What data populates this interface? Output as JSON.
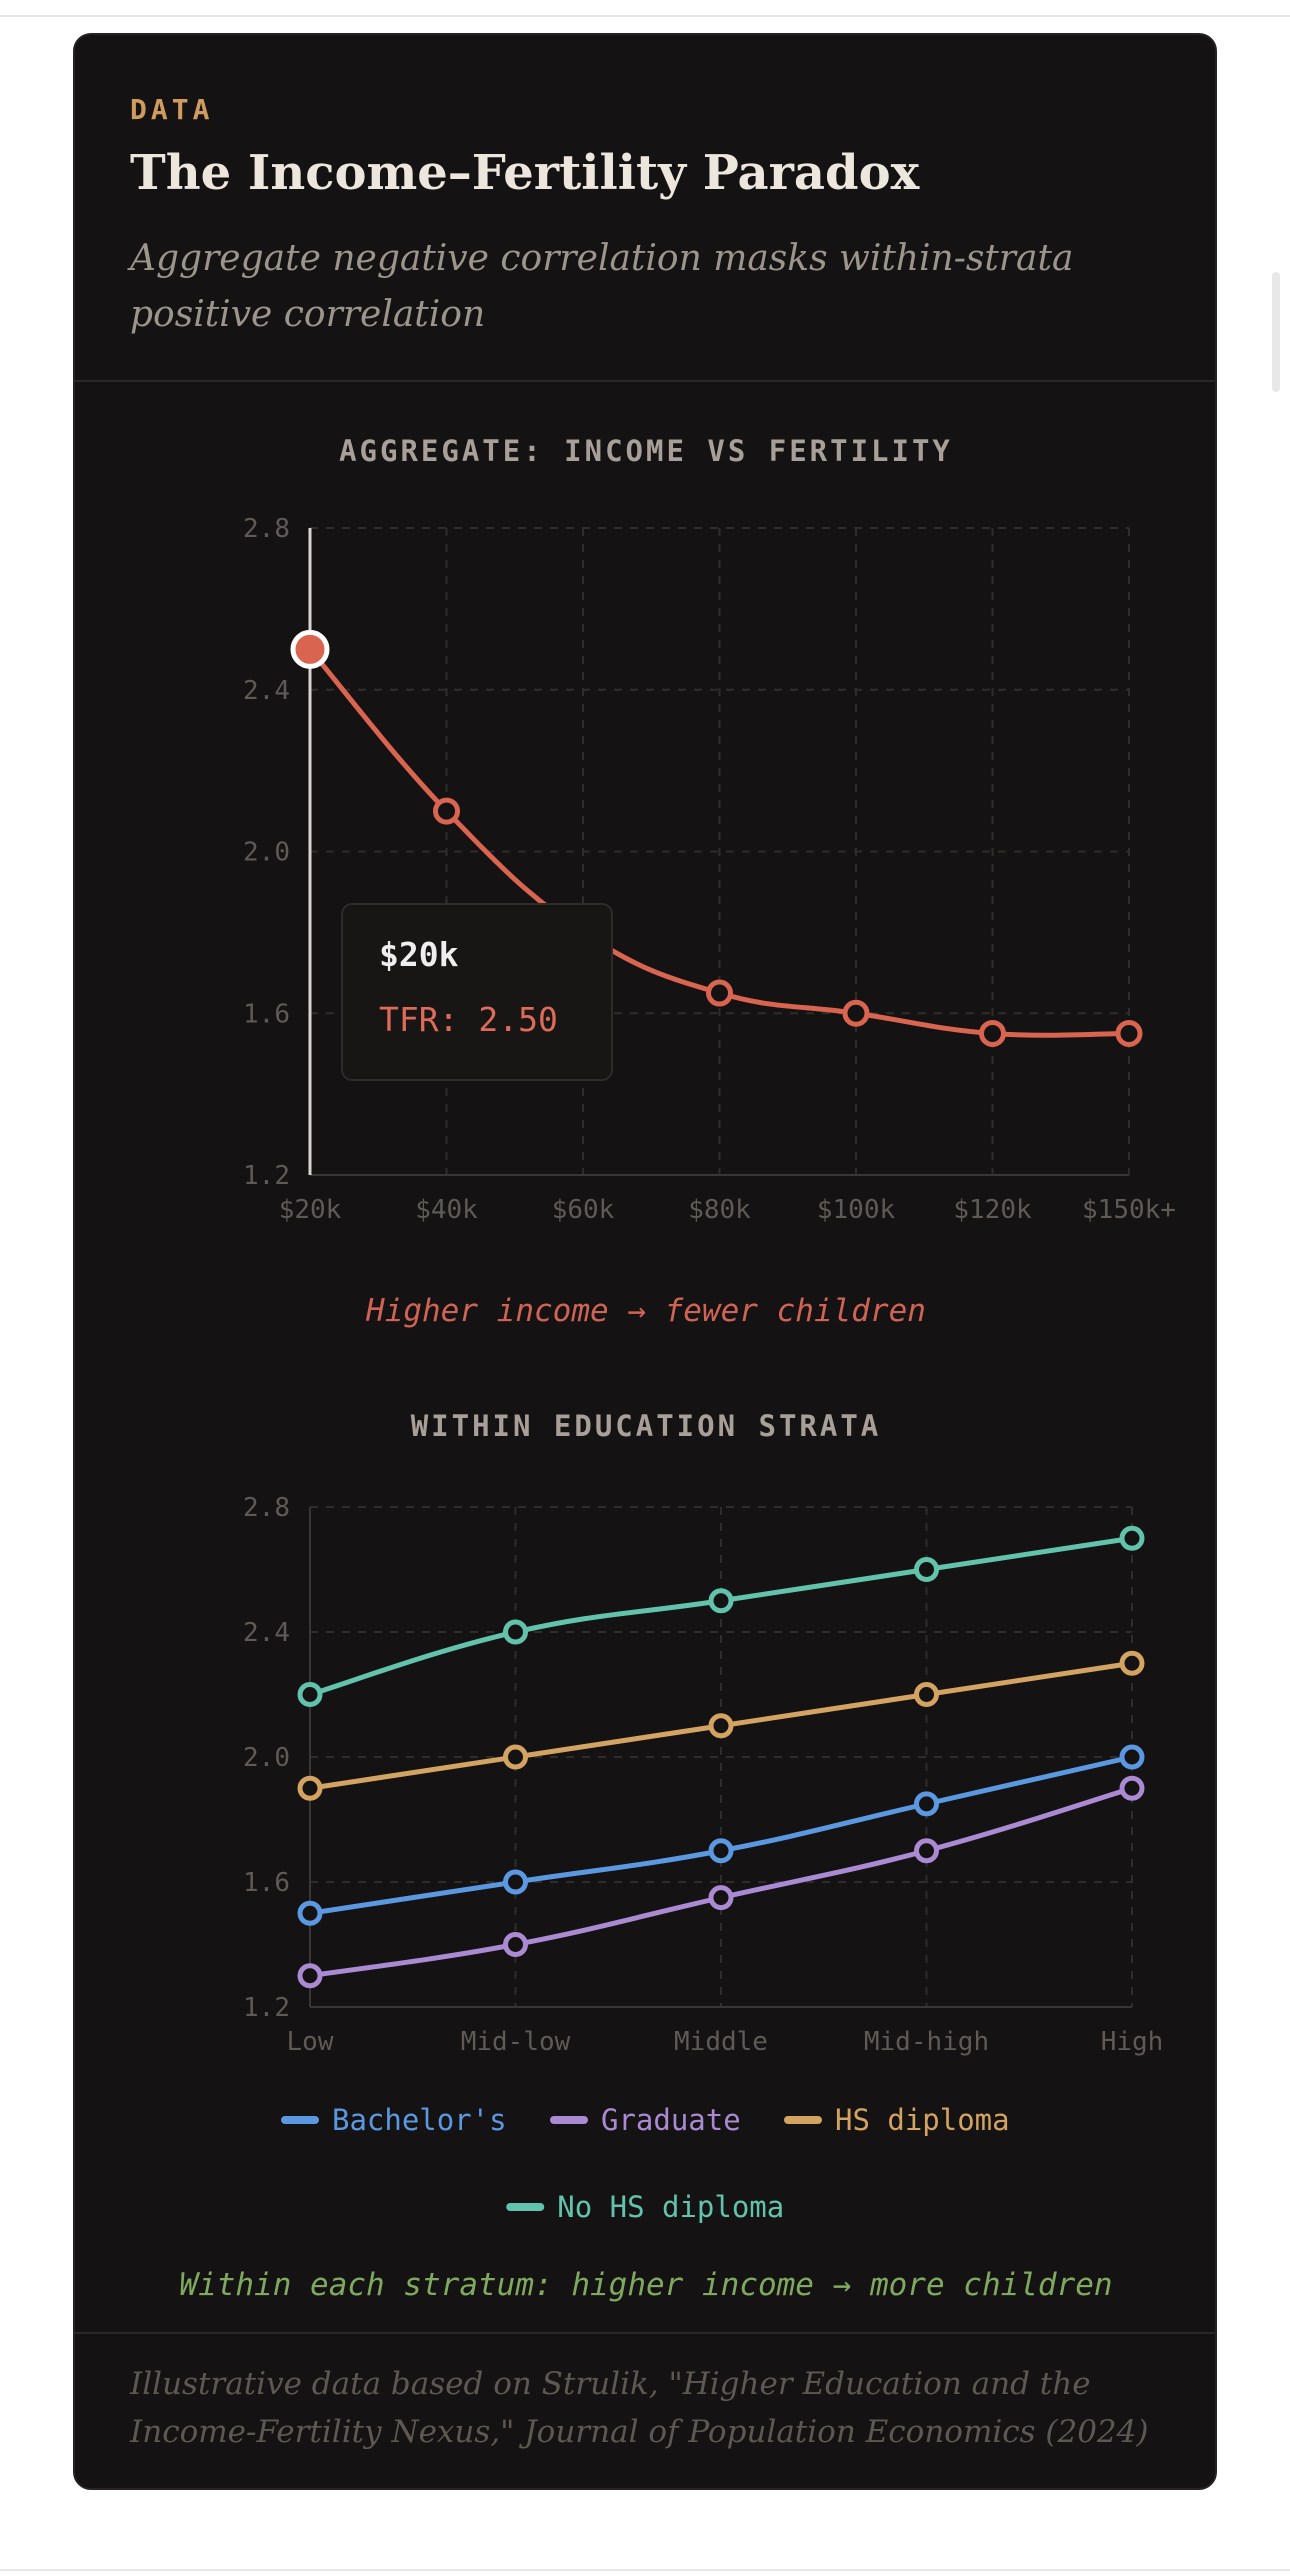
{
  "header": {
    "kicker": "DATA",
    "title": "The Income–Fertility Paradox",
    "subtitle": "Aggregate negative correlation masks within-strata positive correlation"
  },
  "chart_data": [
    {
      "type": "line",
      "title": "AGGREGATE: INCOME VS FERTILITY",
      "categories": [
        "$20k",
        "$40k",
        "$60k",
        "$80k",
        "$100k",
        "$120k",
        "$150k+"
      ],
      "series": [
        {
          "values": [
            2.5,
            2.1,
            1.8,
            1.65,
            1.6,
            1.55,
            1.55
          ],
          "color": "#d9644f",
          "markers": [
            0,
            1,
            3,
            4,
            5,
            6
          ]
        }
      ],
      "yticks": [
        "1.2",
        "1.6",
        "2.0",
        "2.4",
        "2.8"
      ],
      "ylim": [
        1.2,
        2.8
      ],
      "grid": true,
      "tooltip": {
        "title": "$20k",
        "value": "TFR: 2.50"
      },
      "annotation": "Higher income → fewer children"
    },
    {
      "type": "line",
      "title": "WITHIN EDUCATION STRATA",
      "categories": [
        "Low",
        "Mid-low",
        "Middle",
        "Mid-high",
        "High"
      ],
      "series": [
        {
          "name": "No HS diploma",
          "values": [
            2.2,
            2.4,
            2.5,
            2.6,
            2.7
          ],
          "color": "#62c3ad"
        },
        {
          "name": "HS diploma",
          "values": [
            1.9,
            2.0,
            2.1,
            2.2,
            2.3
          ],
          "color": "#d3a362"
        },
        {
          "name": "Bachelor's",
          "values": [
            1.5,
            1.6,
            1.7,
            1.85,
            2.0
          ],
          "color": "#5b98e2"
        },
        {
          "name": "Graduate",
          "values": [
            1.3,
            1.4,
            1.55,
            1.7,
            1.9
          ],
          "color": "#ab8ad4"
        }
      ],
      "legend_order": [
        "Bachelor's",
        "Graduate",
        "HS diploma",
        "No HS diploma"
      ],
      "yticks": [
        "1.2",
        "1.6",
        "2.0",
        "2.4",
        "2.8"
      ],
      "ylim": [
        1.2,
        2.8
      ],
      "grid": true,
      "annotation": "Within each stratum: higher income → more children"
    }
  ],
  "footer": {
    "source": "Illustrative data based on Strulik, \"Higher Education and the Income-Fertility Nexus,\" Journal of Population Economics (2024)"
  }
}
